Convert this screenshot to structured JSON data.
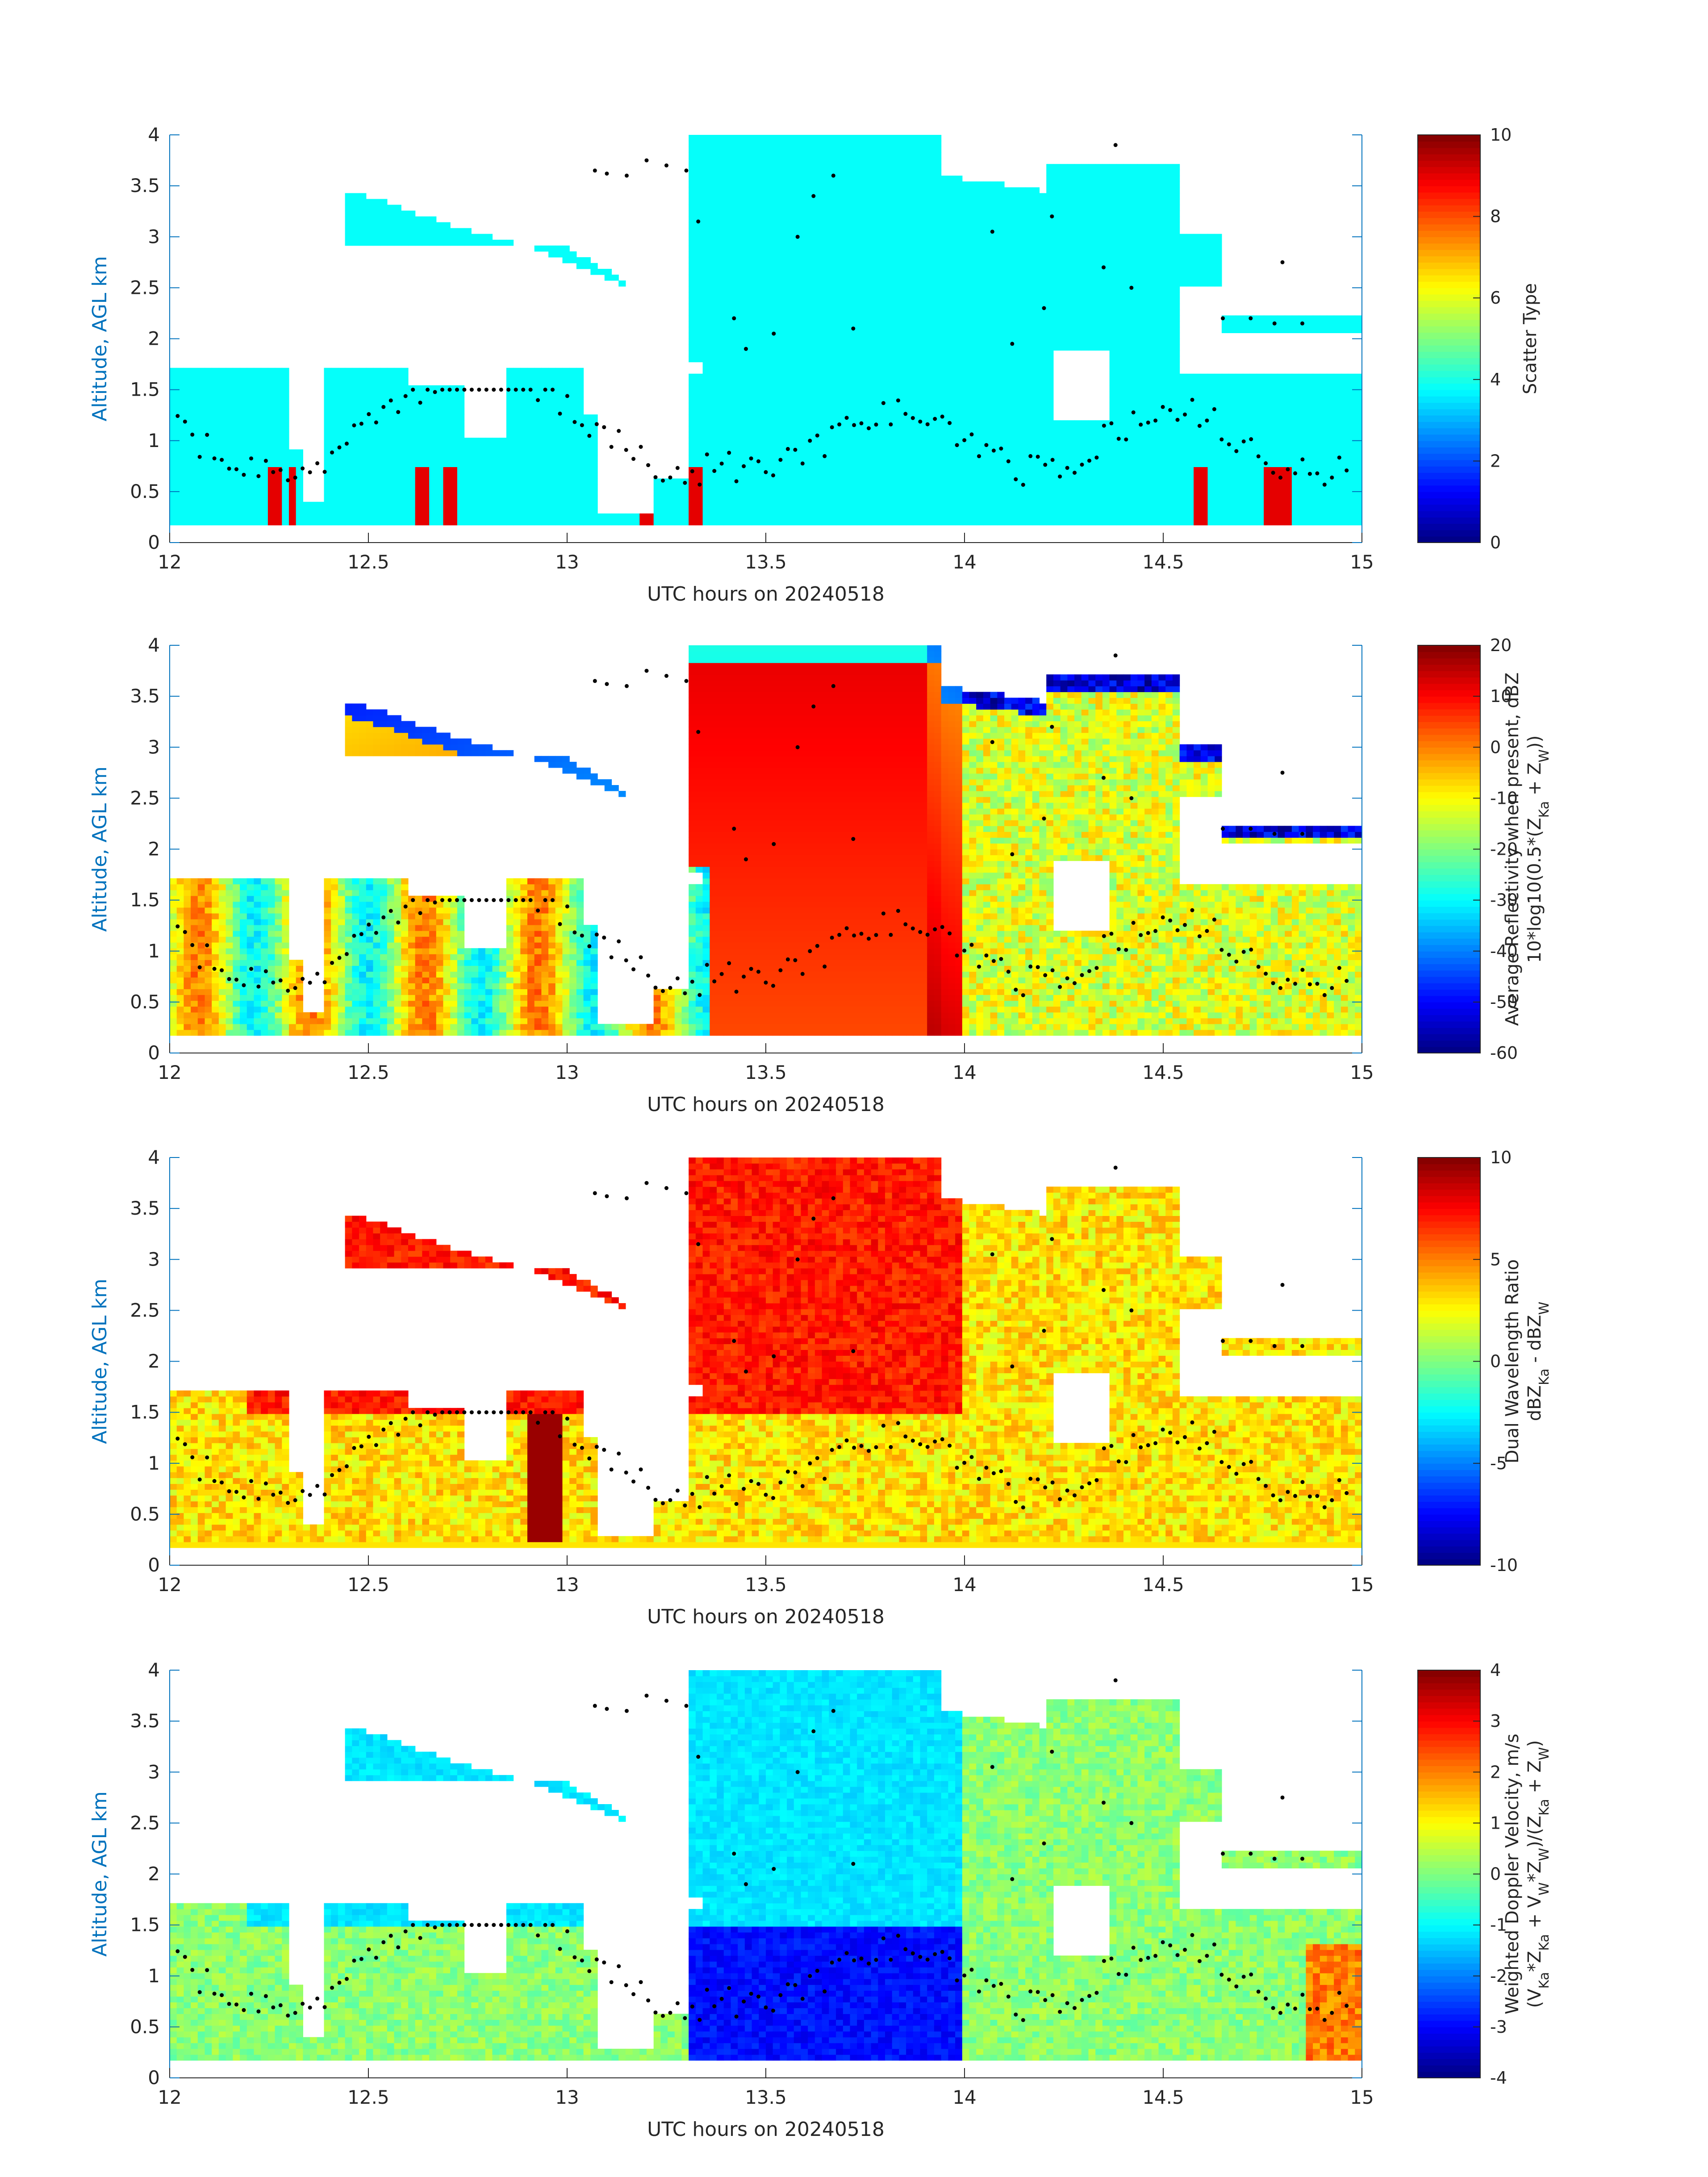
{
  "chart_data": [
    {
      "type": "heatmap",
      "xlabel": "UTC hours on 20240518",
      "ylabel": "Altitude, AGL km",
      "xlim": [
        12,
        15
      ],
      "ylim": [
        0,
        4
      ],
      "x_ticks": [
        "12",
        "12.5",
        "13",
        "13.5",
        "14",
        "14.5",
        "15"
      ],
      "y_ticks": [
        "0",
        "0.5",
        "1",
        "1.5",
        "2",
        "2.5",
        "3",
        "3.5",
        "4"
      ],
      "colorbar": {
        "label_lines": [
          "Scatter Type"
        ],
        "range": [
          0,
          10
        ],
        "ticks": [
          "0",
          "2",
          "4",
          "6",
          "8",
          "10"
        ]
      },
      "field": "scatter_type",
      "values": {
        "cloud_type": 3.8,
        "precip_type": 9
      }
    },
    {
      "type": "heatmap",
      "xlabel": "UTC hours on 20240518",
      "ylabel": "Altitude, AGL km",
      "xlim": [
        12,
        15
      ],
      "ylim": [
        0,
        4
      ],
      "x_ticks": [
        "12",
        "12.5",
        "13",
        "13.5",
        "14",
        "14.5",
        "15"
      ],
      "y_ticks": [
        "0",
        "0.5",
        "1",
        "1.5",
        "2",
        "2.5",
        "3",
        "3.5",
        "4"
      ],
      "colorbar": {
        "label_lines": [
          "Average Reflectivity when present, dBZ",
          "10*log10(0.5*(Z",
          "Ka",
          " + Z",
          "W",
          "))"
        ],
        "range": [
          -60,
          20
        ],
        "ticks": [
          "-60",
          "-50",
          "-40",
          "-30",
          "-20",
          "-10",
          "0",
          "10",
          "20"
        ]
      },
      "field": "reflectivity"
    },
    {
      "type": "heatmap",
      "xlabel": "UTC hours on 20240518",
      "ylabel": "Altitude, AGL km",
      "xlim": [
        12,
        15
      ],
      "ylim": [
        0,
        4
      ],
      "x_ticks": [
        "12",
        "12.5",
        "13",
        "13.5",
        "14",
        "14.5",
        "15"
      ],
      "y_ticks": [
        "0",
        "0.5",
        "1",
        "1.5",
        "2",
        "2.5",
        "3",
        "3.5",
        "4"
      ],
      "colorbar": {
        "label_lines": [
          "Dual Wavelength Ratio",
          "dBZ",
          "Ka",
          " - dBZ",
          "W"
        ],
        "range": [
          -10,
          10
        ],
        "ticks": [
          "-10",
          "-5",
          "0",
          "5",
          "10"
        ]
      },
      "field": "dwr"
    },
    {
      "type": "heatmap",
      "xlabel": "UTC hours on 20240518",
      "ylabel": "Altitude, AGL km",
      "xlim": [
        12,
        15
      ],
      "ylim": [
        0,
        4
      ],
      "x_ticks": [
        "12",
        "12.5",
        "13",
        "13.5",
        "14",
        "14.5",
        "15"
      ],
      "y_ticks": [
        "0",
        "0.5",
        "1",
        "1.5",
        "2",
        "2.5",
        "3",
        "3.5",
        "4"
      ],
      "colorbar": {
        "label_lines": [
          "Weighted Doppler Velocity, m/s",
          "(V",
          "Ka",
          "*Z",
          "Ka",
          " + V",
          "W",
          "*Z",
          "W",
          ")/(Z",
          "Ka",
          " + Z",
          "W",
          ")"
        ],
        "range": [
          -4,
          4
        ],
        "ticks": [
          "-4",
          "-3",
          "-2",
          "-1",
          "0",
          "1",
          "2",
          "3",
          "4"
        ]
      },
      "field": "doppler"
    }
  ],
  "colors": {
    "axis_blue": "#0072BD",
    "text": "#262626",
    "dots": "#000000"
  }
}
